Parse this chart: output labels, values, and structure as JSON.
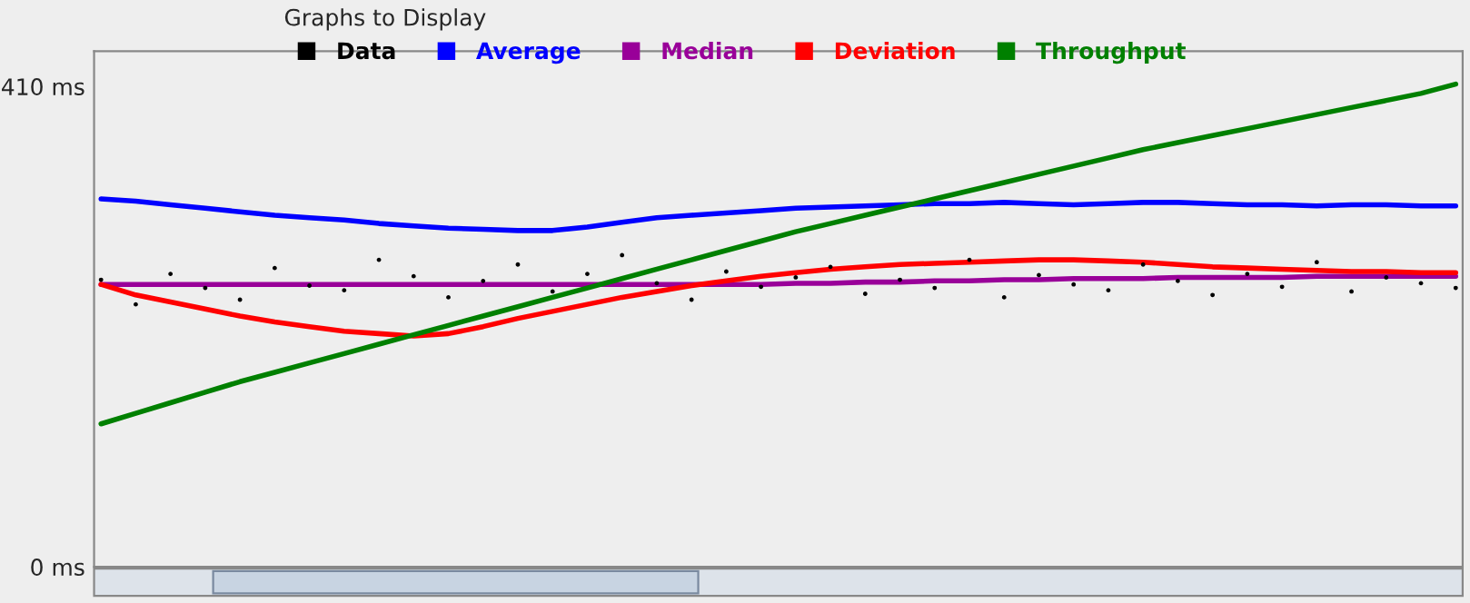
{
  "chart_data": {
    "type": "line",
    "legend_title": "Graphs to Display",
    "legend": "top",
    "categories": [
      null,
      null,
      null,
      null,
      null,
      null,
      null,
      null,
      null,
      null,
      null,
      null,
      null,
      null,
      null,
      null,
      null,
      null,
      null,
      null,
      null,
      null,
      null,
      null,
      null,
      null,
      null,
      null,
      null,
      null,
      null,
      null,
      null,
      null,
      null,
      null,
      null,
      null,
      null,
      null
    ],
    "series": [
      {
        "name": "Data",
        "type": "scatter",
        "color": "#000000",
        "values": [
          245,
          224,
          250,
          238,
          228,
          255,
          240,
          236,
          262,
          248,
          230,
          244,
          258,
          235,
          250,
          266,
          242,
          228,
          252,
          239,
          247,
          256,
          233,
          245,
          238,
          262,
          230,
          249,
          241,
          236,
          258,
          244,
          232,
          250,
          239,
          260,
          235,
          247,
          242,
          238
        ]
      },
      {
        "name": "Average",
        "color": "#0000ff",
        "values": [
          314,
          312,
          309,
          306,
          303,
          300,
          298,
          296,
          293,
          291,
          289,
          288,
          287,
          287,
          290,
          294,
          298,
          300,
          302,
          304,
          306,
          307,
          308,
          309,
          310,
          310,
          311,
          310,
          309,
          310,
          311,
          311,
          310,
          309,
          309,
          308,
          309,
          309,
          308,
          308
        ]
      },
      {
        "name": "Median",
        "color": "#990099",
        "values": [
          241,
          241,
          241,
          241,
          241,
          241,
          241,
          241,
          241,
          241,
          241,
          241,
          241,
          241,
          241,
          241,
          241,
          241,
          241,
          241,
          242,
          242,
          243,
          243,
          244,
          244,
          245,
          245,
          246,
          246,
          246,
          247,
          247,
          247,
          247,
          248,
          248,
          248,
          248,
          248
        ]
      },
      {
        "name": "Deviation",
        "color": "#ff0000",
        "values": [
          241,
          232,
          226,
          220,
          214,
          209,
          205,
          201,
          199,
          197,
          199,
          205,
          212,
          218,
          224,
          230,
          235,
          240,
          244,
          248,
          251,
          254,
          256,
          258,
          259,
          260,
          261,
          262,
          262,
          261,
          260,
          258,
          256,
          255,
          254,
          253,
          252,
          252,
          251,
          251
        ]
      },
      {
        "name": "Throughput",
        "color": "#008000",
        "values": [
          122,
          131,
          140,
          149,
          158,
          166,
          174,
          182,
          190,
          198,
          206,
          214,
          222,
          230,
          238,
          246,
          254,
          262,
          270,
          278,
          286,
          293,
          300,
          307,
          314,
          321,
          328,
          335,
          342,
          349,
          356,
          362,
          368,
          374,
          380,
          386,
          392,
          398,
          404,
          412
        ]
      }
    ],
    "ylim": [
      0,
      440
    ],
    "yticks": [
      {
        "value": 0,
        "label": "0 ms"
      },
      {
        "value": 410,
        "label": "410 ms"
      }
    ],
    "tick_labels": "y",
    "grid": false,
    "marker": "none",
    "line_style": "solid"
  }
}
